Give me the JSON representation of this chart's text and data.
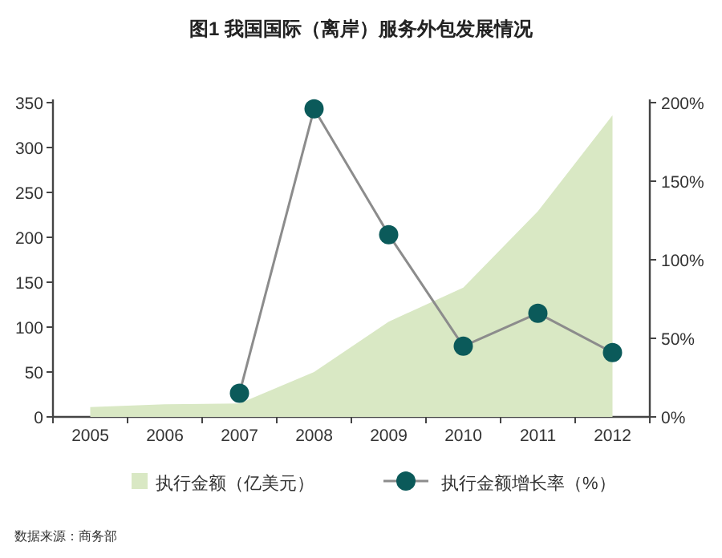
{
  "chart_data": {
    "type": "area",
    "title": "图1  我国国际（离岸）服务外包发展情况",
    "categories": [
      "2005",
      "2006",
      "2007",
      "2008",
      "2009",
      "2010",
      "2011",
      "2012"
    ],
    "series": [
      {
        "name": "执行金额（亿美元）",
        "color": "#d9e8c4",
        "values": [
          11,
          14,
          15,
          50,
          106,
          144,
          229,
          336
        ]
      },
      {
        "name": "执行金额增长率（%）",
        "type": "line",
        "axis": "y2",
        "marker": "circle",
        "color": "#8c8c8c",
        "colors": [
          null,
          null,
          "#0b5a5a",
          "#0b5a5a",
          "#0b5a5a",
          "#0b5a5a",
          "#0b5a5a",
          "#0b5a5a"
        ],
        "values": [
          null,
          null,
          15,
          196,
          116,
          45,
          66,
          41
        ]
      }
    ],
    "ylim": [
      0,
      350
    ],
    "yticks": [
      0,
      50,
      100,
      150,
      200,
      250,
      300,
      350
    ],
    "y2lim": [
      0,
      200
    ],
    "y2ticks": [
      {
        "value": 0,
        "label": "0%"
      },
      {
        "value": 50,
        "label": "50%"
      },
      {
        "value": 100,
        "label": "100%"
      },
      {
        "value": 150,
        "label": "150%"
      },
      {
        "value": 200,
        "label": "200%"
      }
    ],
    "legend": "bottom",
    "annotations": [
      "数据来源：商务部"
    ]
  }
}
